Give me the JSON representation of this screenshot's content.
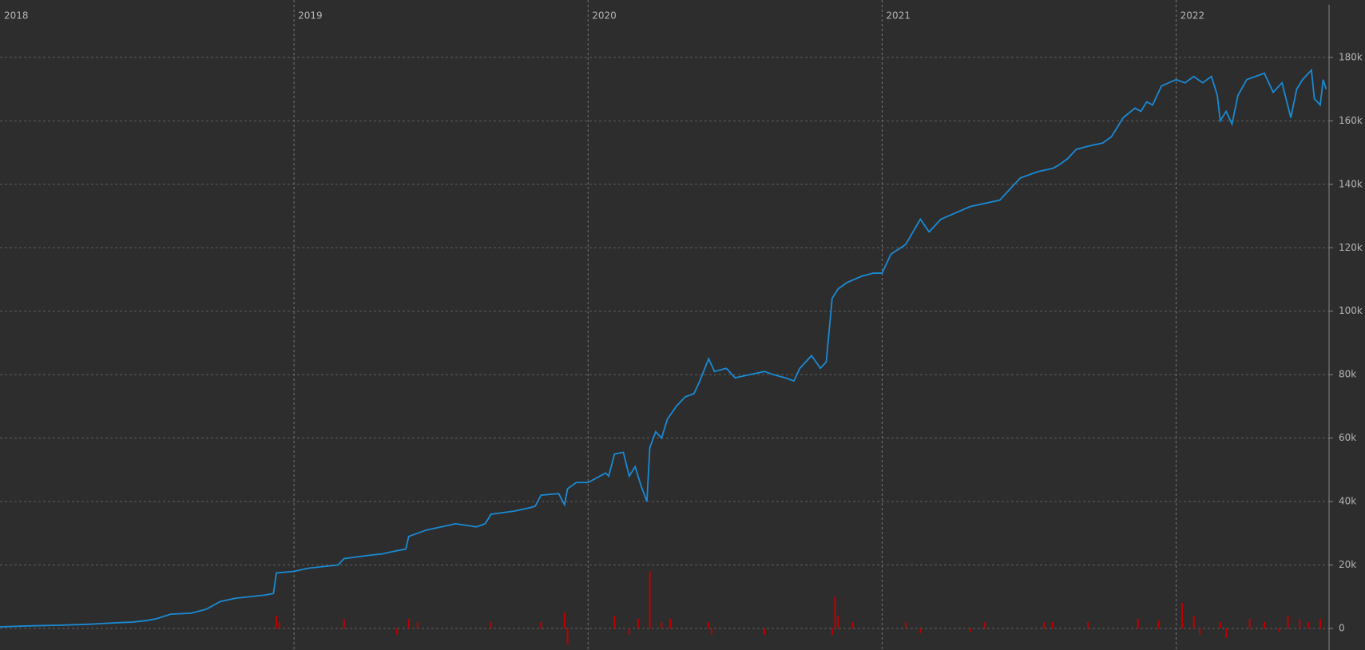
{
  "chart_data": {
    "type": "combo",
    "grid": true,
    "background": "#2d2d2d",
    "xlim": [
      2018,
      2022.52
    ],
    "xticks": [
      2018,
      2019,
      2020,
      2021,
      2022
    ],
    "ylim": [
      -6800,
      198100
    ],
    "yticks": [
      0,
      {
        "value": 20000,
        "label": "20k"
      },
      {
        "value": 40000,
        "label": "40k"
      },
      {
        "value": 60000,
        "label": "60k"
      },
      {
        "value": 80000,
        "label": "80k"
      },
      {
        "value": 100000,
        "label": "100k"
      },
      {
        "value": 120000,
        "label": "120k"
      },
      {
        "value": 140000,
        "label": "140k"
      },
      {
        "value": 160000,
        "label": "160k"
      },
      {
        "value": 180000,
        "label": "180k"
      }
    ],
    "series": [
      {
        "type": "line",
        "color": "#1a8ad4",
        "x": [
          2018.0,
          2018.1,
          2018.2,
          2018.3,
          2018.4,
          2018.45,
          2018.5,
          2018.53,
          2018.58,
          2018.65,
          2018.7,
          2018.75,
          2018.8,
          2018.85,
          2018.9,
          2018.93,
          2018.94,
          2019.0,
          2019.05,
          2019.1,
          2019.15,
          2019.17,
          2019.25,
          2019.3,
          2019.35,
          2019.38,
          2019.39,
          2019.45,
          2019.5,
          2019.55,
          2019.62,
          2019.65,
          2019.67,
          2019.75,
          2019.8,
          2019.82,
          2019.84,
          2019.9,
          2019.92,
          2019.93,
          2019.96,
          2020.0,
          2020.04,
          2020.06,
          2020.07,
          2020.09,
          2020.12,
          2020.14,
          2020.16,
          2020.18,
          2020.2,
          2020.21,
          2020.23,
          2020.25,
          2020.27,
          2020.3,
          2020.33,
          2020.36,
          2020.38,
          2020.41,
          2020.43,
          2020.47,
          2020.5,
          2020.55,
          2020.6,
          2020.63,
          2020.67,
          2020.7,
          2020.72,
          2020.76,
          2020.79,
          2020.81,
          2020.83,
          2020.85,
          2020.88,
          2020.93,
          2020.97,
          2021.0,
          2021.03,
          2021.08,
          2021.13,
          2021.16,
          2021.2,
          2021.25,
          2021.3,
          2021.35,
          2021.4,
          2021.43,
          2021.47,
          2021.53,
          2021.58,
          2021.6,
          2021.63,
          2021.66,
          2021.7,
          2021.75,
          2021.78,
          2021.82,
          2021.86,
          2021.88,
          2021.9,
          2021.92,
          2021.95,
          2022.0,
          2022.03,
          2022.06,
          2022.09,
          2022.12,
          2022.14,
          2022.15,
          2022.17,
          2022.19,
          2022.21,
          2022.24,
          2022.27,
          2022.3,
          2022.33,
          2022.36,
          2022.39,
          2022.41,
          2022.43,
          2022.46,
          2022.47,
          2022.49,
          2022.5,
          2022.51
        ],
        "values": [
          500,
          800,
          1000,
          1300,
          1800,
          2000,
          2500,
          3000,
          4500,
          4800,
          6000,
          8500,
          9500,
          10000,
          10500,
          11000,
          17500,
          18000,
          19000,
          19500,
          20000,
          22000,
          23000,
          23500,
          24500,
          25000,
          29000,
          31000,
          32000,
          33000,
          32000,
          33000,
          36000,
          37000,
          38000,
          38500,
          42000,
          42500,
          39000,
          44000,
          46000,
          46000,
          48000,
          49000,
          48000,
          55000,
          55500,
          48000,
          51000,
          45000,
          40000,
          57000,
          62000,
          60000,
          66000,
          70000,
          73000,
          74000,
          78000,
          85000,
          81000,
          82000,
          79000,
          80000,
          81000,
          80000,
          79000,
          78000,
          82000,
          86000,
          82000,
          84000,
          104000,
          107000,
          109000,
          111000,
          112000,
          112000,
          118000,
          121000,
          129000,
          125000,
          129000,
          131000,
          133000,
          134000,
          135000,
          138000,
          142000,
          144000,
          145000,
          146000,
          148000,
          151000,
          152000,
          153000,
          155000,
          161000,
          164000,
          163000,
          166000,
          165000,
          171000,
          173000,
          172000,
          174000,
          172000,
          174000,
          168000,
          160000,
          163000,
          159000,
          168000,
          173000,
          174000,
          175000,
          169000,
          172000,
          161000,
          170000,
          173000,
          176000,
          167000,
          165000,
          173000,
          170000
        ]
      },
      {
        "type": "bar",
        "color": "#c00000",
        "x": [
          2018.94,
          2018.95,
          2019.17,
          2019.35,
          2019.39,
          2019.42,
          2019.67,
          2019.84,
          2019.92,
          2019.93,
          2020.09,
          2020.14,
          2020.17,
          2020.21,
          2020.25,
          2020.28,
          2020.41,
          2020.42,
          2020.6,
          2020.83,
          2020.84,
          2020.85,
          2020.9,
          2021.08,
          2021.13,
          2021.3,
          2021.35,
          2021.55,
          2021.58,
          2021.7,
          2021.87,
          2021.94,
          2022.02,
          2022.06,
          2022.08,
          2022.15,
          2022.17,
          2022.25,
          2022.3,
          2022.35,
          2022.38,
          2022.42,
          2022.45,
          2022.49
        ],
        "values": [
          4000,
          2000,
          3000,
          -2000,
          3000,
          2000,
          2000,
          2000,
          5000,
          -5000,
          4000,
          -2000,
          3000,
          18000,
          2000,
          3000,
          2000,
          -2000,
          -2000,
          -2000,
          10000,
          4000,
          2000,
          2000,
          -1500,
          -1000,
          2000,
          2000,
          2000,
          2000,
          3000,
          2500,
          8000,
          4000,
          -2000,
          2000,
          -3000,
          3000,
          2000,
          -1000,
          4000,
          3000,
          2000,
          3000
        ]
      }
    ]
  }
}
